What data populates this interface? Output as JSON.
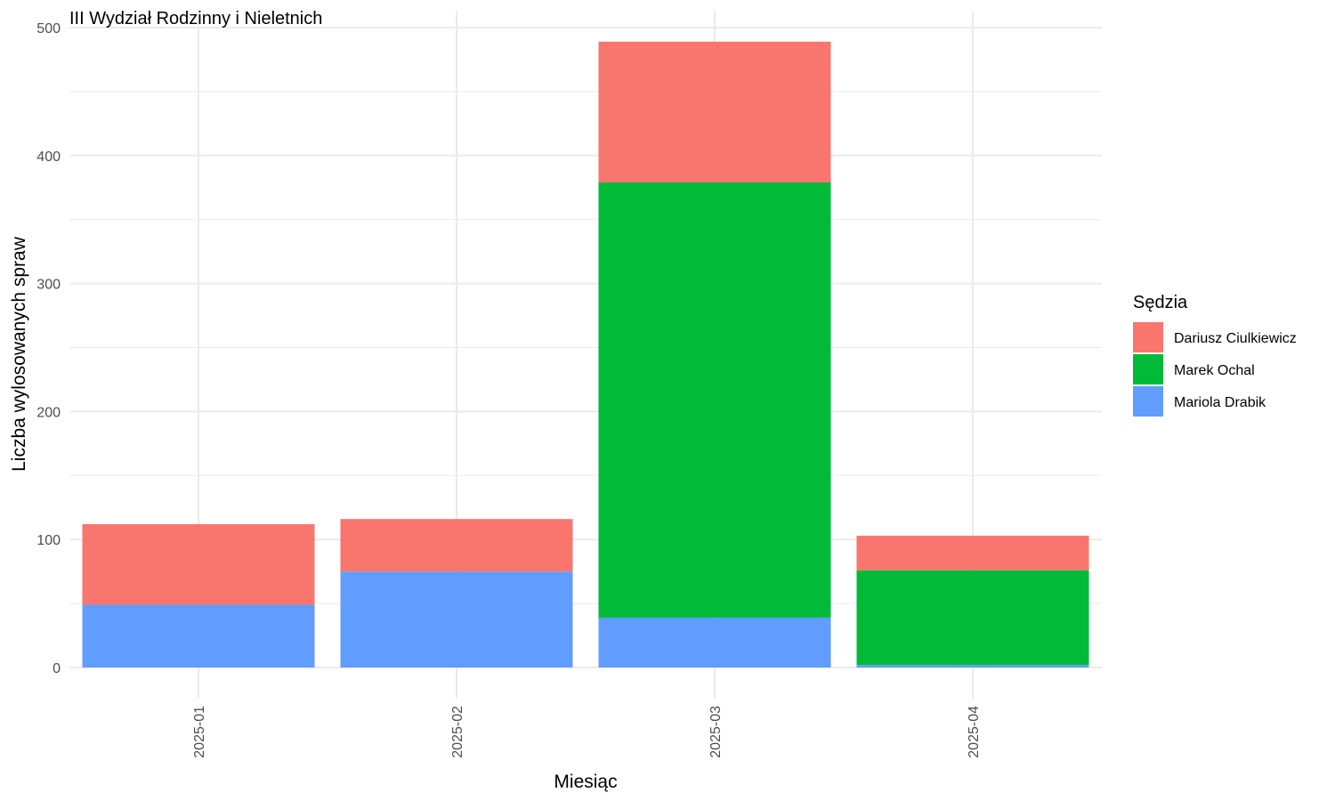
{
  "chart_data": {
    "type": "bar",
    "stacked": true,
    "title": "III Wydział Rodzinny i Nieletnich",
    "xlabel": "Miesiąc",
    "ylabel": "Liczba wylosowanych spraw",
    "categories": [
      "2025-01",
      "2025-02",
      "2025-03",
      "2025-04"
    ],
    "ylim": [
      0,
      500
    ],
    "yticks": [
      0,
      100,
      200,
      300,
      400,
      500
    ],
    "grid": true,
    "legend": {
      "title": "Sędzia",
      "position": "right"
    },
    "series": [
      {
        "name": "Dariusz Ciulkiewicz",
        "color": "#F8766D",
        "values": [
          63,
          41,
          110,
          27
        ]
      },
      {
        "name": "Marek Ochal",
        "color": "#00BA38",
        "values": [
          0,
          0,
          340,
          74
        ]
      },
      {
        "name": "Mariola Drabik",
        "color": "#619CFF",
        "values": [
          49,
          75,
          39,
          2
        ]
      }
    ],
    "stack_order_bottom_to_top": [
      "Mariola Drabik",
      "Marek Ochal",
      "Dariusz Ciulkiewicz"
    ]
  }
}
